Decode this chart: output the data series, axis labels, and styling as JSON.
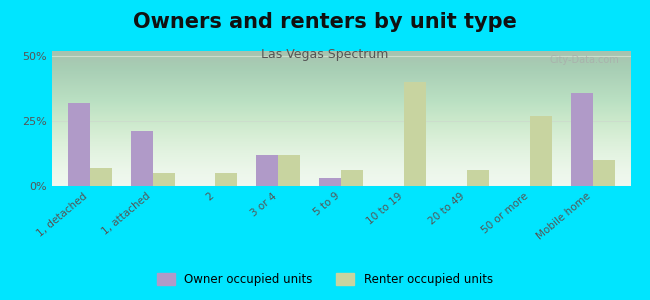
{
  "title": "Owners and renters by unit type",
  "subtitle": "Las Vegas Spectrum",
  "categories": [
    "1, detached",
    "1, attached",
    "2",
    "3 or 4",
    "5 to 9",
    "10 to 19",
    "20 to 49",
    "50 or more",
    "Mobile home"
  ],
  "owner_values": [
    32,
    21,
    0,
    12,
    3,
    0,
    0,
    0,
    36
  ],
  "renter_values": [
    7,
    5,
    5,
    12,
    6,
    40,
    6,
    27,
    10
  ],
  "owner_color": "#b09ac8",
  "renter_color": "#c8d4a0",
  "plot_bg_color": "#eef7ee",
  "bg_outer": "#00e5ff",
  "ylim": [
    0,
    52
  ],
  "yticks": [
    0,
    25,
    50
  ],
  "ytick_labels": [
    "0%",
    "25%",
    "50%"
  ],
  "bar_width": 0.35,
  "legend_owner": "Owner occupied units",
  "legend_renter": "Renter occupied units",
  "title_fontsize": 15,
  "subtitle_fontsize": 9,
  "grid_color": "#ccddcc",
  "watermark": "City-Data.com"
}
